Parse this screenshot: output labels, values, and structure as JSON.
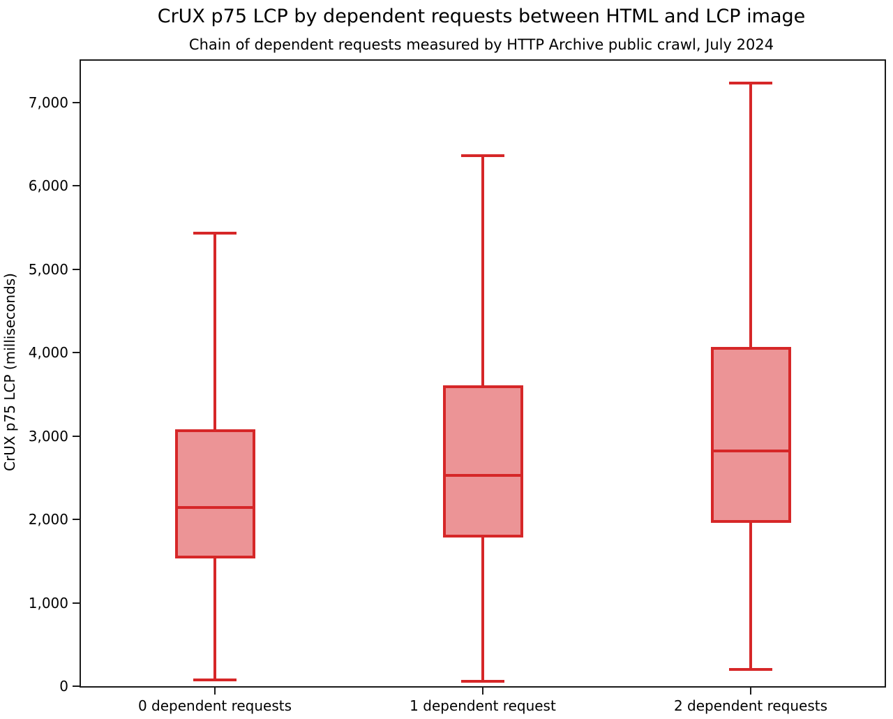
{
  "title": "CrUX p75 LCP by dependent requests between HTML and LCP image",
  "subtitle": "Chain of dependent requests measured by HTTP Archive public crawl, July 2024",
  "chart_data": {
    "type": "boxplot",
    "title": "CrUX p75 LCP by dependent requests between HTML and LCP image",
    "subtitle": "Chain of dependent requests measured by HTTP Archive public crawl, July 2024",
    "ylabel": "CrUX p75 LCP (milliseconds)",
    "xlabel": "",
    "ylim": [
      0,
      7500
    ],
    "grid": false,
    "legend_position": "none",
    "yticks": [
      {
        "value": 0,
        "label": "0"
      },
      {
        "value": 1000,
        "label": "1,000"
      },
      {
        "value": 2000,
        "label": "2,000"
      },
      {
        "value": 3000,
        "label": "3,000"
      },
      {
        "value": 4000,
        "label": "4,000"
      },
      {
        "value": 5000,
        "label": "5,000"
      },
      {
        "value": 6000,
        "label": "6,000"
      },
      {
        "value": 7000,
        "label": "7,000"
      }
    ],
    "categories": [
      "0 dependent requests",
      "1 dependent request",
      "2 dependent requests"
    ],
    "boxes": [
      {
        "category": "0 dependent requests",
        "whisker_min": 75,
        "q1": 1530,
        "median": 2145,
        "q3": 3080,
        "whisker_max": 5430
      },
      {
        "category": "1 dependent request",
        "whisker_min": 55,
        "q1": 1780,
        "median": 2530,
        "q3": 3610,
        "whisker_max": 6360
      },
      {
        "category": "2 dependent requests",
        "whisker_min": 205,
        "q1": 1960,
        "median": 2825,
        "q3": 4070,
        "whisker_max": 7230
      }
    ],
    "colors": {
      "box_edge": "#d62728",
      "box_fill": "#ec9496",
      "median": "#d62728",
      "whisker": "#d62728",
      "axis": "#1a1a1a",
      "text": "#000000",
      "background": "#ffffff"
    }
  }
}
